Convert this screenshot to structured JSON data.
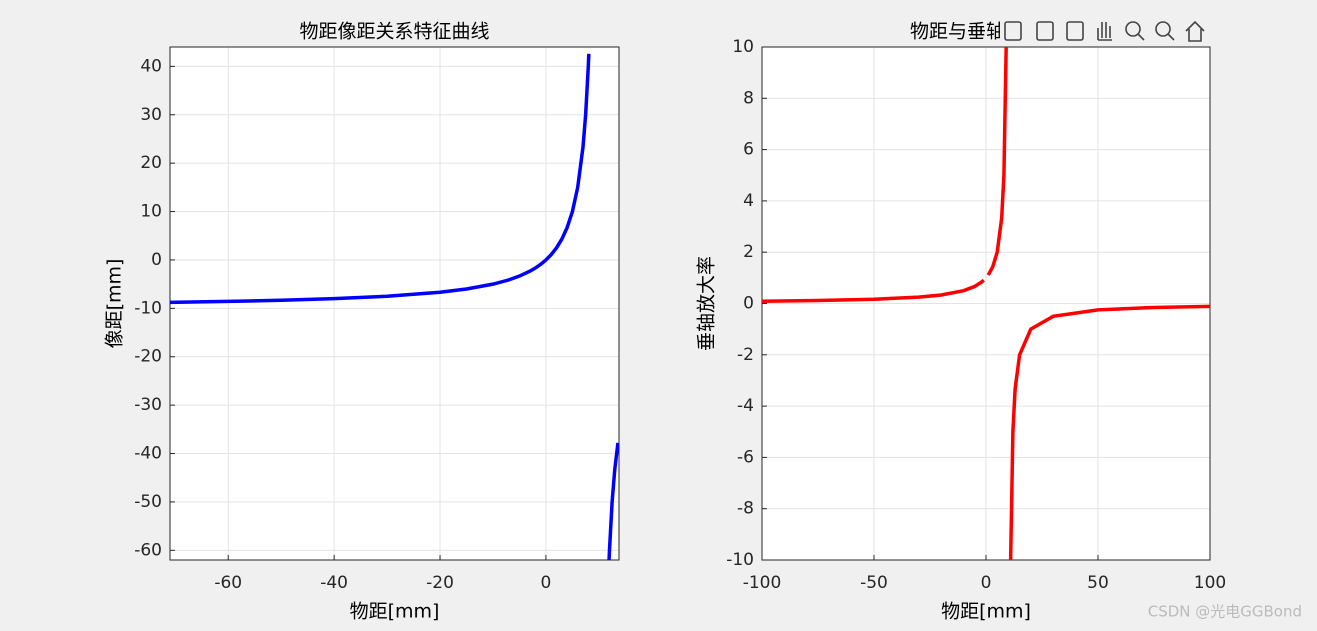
{
  "chart_data": [
    {
      "type": "line",
      "title": "物距像距关系特征曲线",
      "x_label": "物距[mm]",
      "y_label": "像距[mm]",
      "xlim": [
        -71,
        13.8
      ],
      "ylim": [
        -62,
        44
      ],
      "xticks": [
        -60,
        -40,
        -20,
        0
      ],
      "yticks": [
        -60,
        -50,
        -40,
        -30,
        -20,
        -10,
        0,
        10,
        20,
        30,
        40
      ],
      "grid": true,
      "series": [
        {
          "color": "#0000ff",
          "x": [
            -71,
            -60,
            -50,
            -40,
            -30,
            -20,
            -15,
            -10,
            -7,
            -5,
            -3,
            -2,
            -1,
            0,
            1,
            2,
            3,
            4,
            5,
            6,
            7,
            7.5,
            8,
            8.1,
            null,
            11.9,
            12,
            12.5,
            13,
            13.6
          ],
          "values": [
            -8.77,
            -8.57,
            -8.33,
            -8.0,
            -7.5,
            -6.67,
            -6.0,
            -5.0,
            -4.12,
            -3.33,
            -2.31,
            -1.67,
            -0.91,
            0,
            1.11,
            2.5,
            4.29,
            6.67,
            10,
            15,
            23.33,
            30,
            40,
            42.6,
            null,
            -62.6,
            -60,
            -50,
            -43.3,
            -37.8
          ]
        }
      ]
    },
    {
      "type": "line",
      "title": "物距与垂轴放大率",
      "x_label": "物距[mm]",
      "y_label": "垂轴放大率",
      "xlim": [
        -100,
        100
      ],
      "ylim": [
        -10,
        10
      ],
      "xticks": [
        -100,
        -50,
        0,
        50,
        100
      ],
      "yticks": [
        -10,
        -8,
        -6,
        -4,
        -2,
        0,
        2,
        4,
        6,
        8,
        10
      ],
      "grid": true,
      "series": [
        {
          "color": "#ff0000",
          "x": [
            -100,
            -75,
            -50,
            -30,
            -20,
            -10,
            -5,
            -2,
            -1,
            null,
            1,
            3,
            5,
            7,
            8,
            9,
            9.1,
            null,
            10.9,
            11,
            12,
            13,
            15,
            20,
            30,
            50,
            75,
            100
          ],
          "values": [
            0.09,
            0.118,
            0.167,
            0.25,
            0.333,
            0.5,
            0.667,
            0.833,
            0.909,
            null,
            1.11,
            1.43,
            2,
            3.33,
            5,
            10,
            11.1,
            null,
            -11.1,
            -10,
            -5,
            -3.33,
            -2,
            -1,
            -0.5,
            -0.25,
            -0.154,
            -0.111
          ]
        }
      ]
    }
  ],
  "watermark": "CSDN @光电GGBond"
}
